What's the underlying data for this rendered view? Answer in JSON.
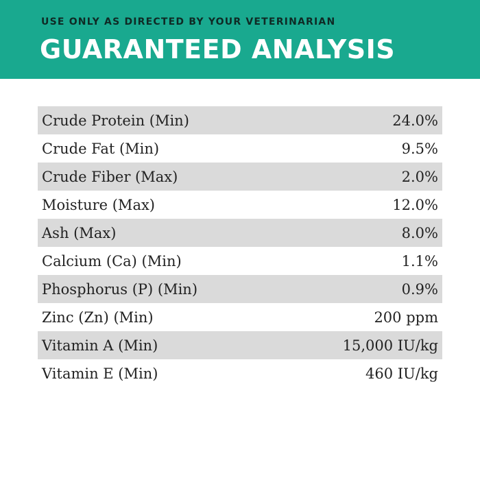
{
  "header": {
    "subtitle": "USE ONLY AS DIRECTED BY YOUR VETERINARIAN",
    "title": "GUARANTEED ANALYSIS",
    "background_color": "#19a98f"
  },
  "analysis": {
    "rows": [
      {
        "name": "Crude Protein (Min)",
        "value": "24.0%"
      },
      {
        "name": "Crude Fat (Min)",
        "value": "9.5%"
      },
      {
        "name": "Crude Fiber (Max)",
        "value": "2.0%"
      },
      {
        "name": "Moisture (Max)",
        "value": "12.0%"
      },
      {
        "name": "Ash (Max)",
        "value": "8.0%"
      },
      {
        "name": "Calcium (Ca) (Min)",
        "value": "1.1%"
      },
      {
        "name": "Phosphorus (P) (Min)",
        "value": "0.9%"
      },
      {
        "name": "Zinc (Zn) (Min)",
        "value": "200 ppm"
      },
      {
        "name": "Vitamin A (Min)",
        "value": "15,000 IU/kg"
      },
      {
        "name": "Vitamin E (Min)",
        "value": "460 IU/kg"
      }
    ],
    "shaded_row_color": "#dadada"
  }
}
